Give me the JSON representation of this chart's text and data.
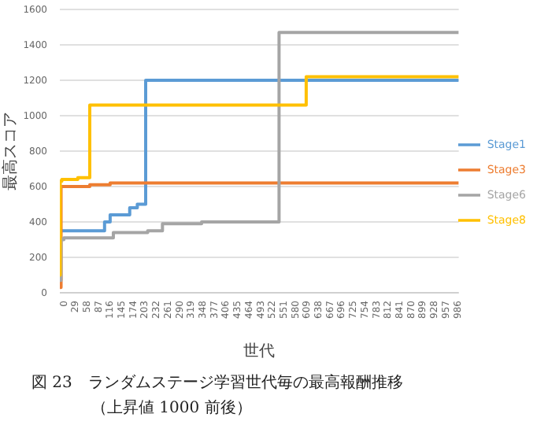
{
  "chart_data": {
    "type": "step",
    "title": "図 23　ランダムステージ学習世代毎の最高報酬推移",
    "subtitle": "（上昇値 1000 前後）",
    "xlabel": "世代",
    "ylabel": "最高スコア",
    "series": [
      {
        "name": "Stage1",
        "color": "#5b9bd5",
        "x": [
          0,
          2,
          112,
          126,
          175,
          194,
          215,
          999
        ],
        "values": [
          70,
          350,
          400,
          440,
          480,
          500,
          1200,
          1200
        ]
      },
      {
        "name": "Stage3",
        "color": "#ed7d31",
        "x": [
          0,
          3,
          75,
          126,
          999
        ],
        "values": [
          30,
          600,
          610,
          620,
          620
        ]
      },
      {
        "name": "Stage6",
        "color": "#a5a5a5",
        "x": [
          0,
          3,
          10,
          134,
          220,
          257,
          355,
          549,
          999
        ],
        "values": [
          70,
          300,
          310,
          340,
          350,
          390,
          400,
          1470,
          1470
        ]
      },
      {
        "name": "Stage8",
        "color": "#ffc000",
        "x": [
          0,
          1,
          5,
          45,
          75,
          617,
          999
        ],
        "values": [
          100,
          630,
          640,
          650,
          1060,
          1220,
          1220
        ]
      }
    ],
    "xlim": [
      0,
      999
    ],
    "xticks": [
      0,
      29,
      58,
      87,
      116,
      145,
      174,
      203,
      232,
      261,
      290,
      319,
      348,
      377,
      406,
      435,
      464,
      493,
      522,
      551,
      580,
      609,
      638,
      667,
      696,
      725,
      754,
      783,
      812,
      841,
      870,
      899,
      928,
      957,
      986
    ],
    "ylim": [
      0,
      1600
    ],
    "yticks": [
      0,
      200,
      400,
      600,
      800,
      1000,
      1200,
      1400,
      1600
    ],
    "grid": "y",
    "legend": "right",
    "marker": "none",
    "line_style": "solid"
  }
}
